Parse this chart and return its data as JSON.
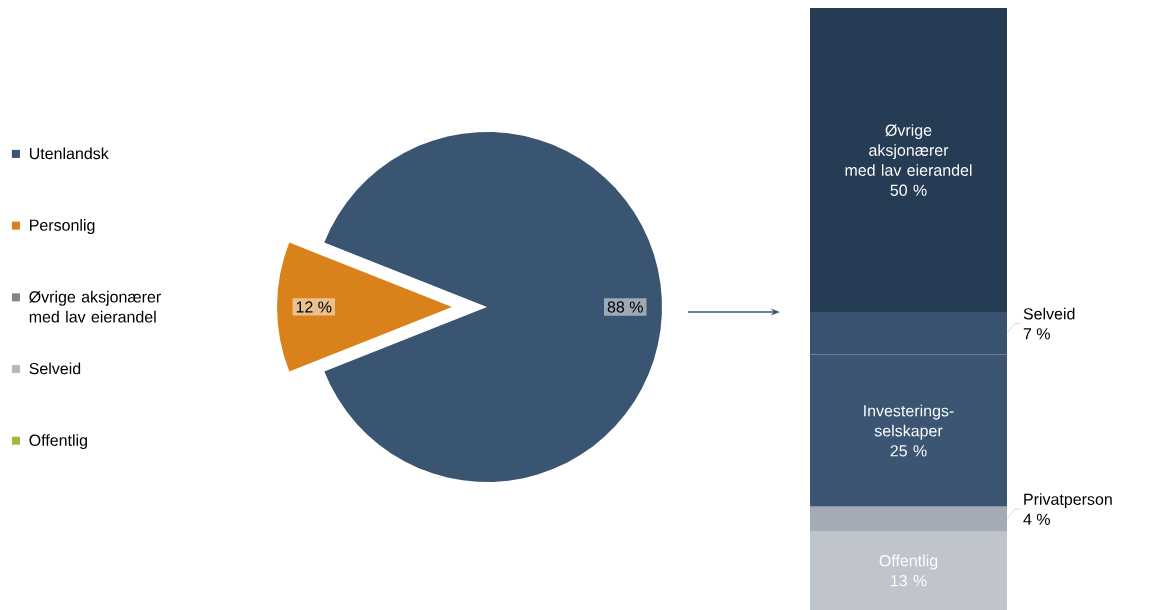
{
  "chart_data": [
    {
      "type": "pie",
      "categories": [
        "Utenlandsk",
        "Personlig",
        "Øvrige aksjonærer med lav eierandel",
        "Selveid",
        "Offentlig"
      ],
      "values": [
        88,
        12,
        0,
        0,
        0
      ],
      "colors": [
        "#3a5572",
        "#d9811a",
        "#7f8690",
        "#b4b7bb",
        "#9bbb3b"
      ],
      "value_labels": [
        "88 %",
        "12 %",
        null,
        null,
        null
      ],
      "legend": "left"
    },
    {
      "type": "bar",
      "stacked": true,
      "categories": [
        null
      ],
      "series": [
        {
          "name": "Offentlig",
          "color": "#c0c4cb",
          "values": [
            13
          ],
          "value_labels": [
            "13 %"
          ]
        },
        {
          "name": "Privatperson",
          "color": "#a3abb4",
          "values": [
            4
          ],
          "value_labels": [
            "4 %"
          ]
        },
        {
          "name": "Investerings-selskaper",
          "color": "#3b5573",
          "values": [
            25
          ],
          "value_labels": [
            "25 %"
          ]
        },
        {
          "name": "Selveid",
          "color": "#395371",
          "values": [
            7
          ],
          "value_labels": [
            "7 %"
          ]
        },
        {
          "name": "Øvrige aksjonærer med lav eierandel",
          "color": "#263b54",
          "values": [
            50
          ],
          "value_labels": [
            "50 %"
          ]
        }
      ]
    }
  ]
}
